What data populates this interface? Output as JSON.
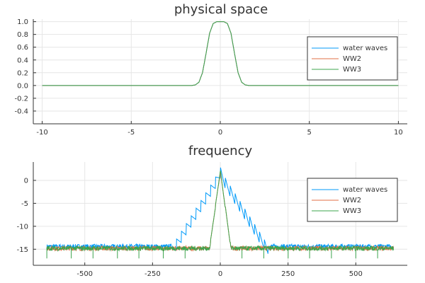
{
  "chart_data": [
    {
      "type": "line",
      "title": "physical space",
      "xlabel": "",
      "ylabel": "",
      "xlim": [
        -10.5,
        10.5
      ],
      "ylim": [
        -0.6,
        1.04
      ],
      "xticks": [
        -10,
        -5,
        0,
        5,
        10
      ],
      "xtick_labels": [
        "-10",
        "-5",
        "0",
        "5",
        "10"
      ],
      "yticks": [
        -0.4,
        -0.2,
        0.0,
        0.2,
        0.4,
        0.6,
        0.8,
        1.0
      ],
      "ytick_labels": [
        "-0.4",
        "-0.2",
        "0.0",
        "0.2",
        "0.4",
        "0.6",
        "0.8",
        "1.0"
      ],
      "grid": true,
      "legend_position": "right",
      "x": [
        -10,
        -2,
        -1.6,
        -1.4,
        -1.2,
        -1.0,
        -0.8,
        -0.6,
        -0.4,
        -0.2,
        0,
        0.2,
        0.4,
        0.6,
        0.8,
        1.0,
        1.2,
        1.4,
        1.6,
        2,
        10
      ],
      "series": [
        {
          "name": "water waves",
          "color": "#009af9",
          "values": [
            0,
            0,
            0.0,
            0.01,
            0.05,
            0.2,
            0.5,
            0.82,
            0.97,
            1.0,
            1.0,
            1.0,
            0.97,
            0.82,
            0.5,
            0.2,
            0.05,
            0.01,
            0.0,
            0,
            0
          ]
        },
        {
          "name": "WW2",
          "color": "#e26f46",
          "values": [
            0,
            0,
            0.0,
            0.01,
            0.05,
            0.2,
            0.5,
            0.82,
            0.97,
            1.0,
            1.0,
            1.0,
            0.97,
            0.82,
            0.5,
            0.2,
            0.05,
            0.01,
            0.0,
            0,
            0
          ]
        },
        {
          "name": "WW3",
          "color": "#3da44d",
          "values": [
            0,
            0,
            0.0,
            0.01,
            0.05,
            0.2,
            0.5,
            0.82,
            0.97,
            1.0,
            1.0,
            1.0,
            0.97,
            0.82,
            0.5,
            0.2,
            0.05,
            0.01,
            0.0,
            0,
            0
          ]
        }
      ]
    },
    {
      "type": "line",
      "title": "frequency",
      "xlabel": "",
      "ylabel": "",
      "xlim": [
        -690,
        690
      ],
      "ylim": [
        -18.5,
        4
      ],
      "xticks": [
        -500,
        -250,
        0,
        250,
        500
      ],
      "xtick_labels": [
        "-500",
        "-250",
        "0",
        "250",
        "500"
      ],
      "yticks": [
        -15,
        -10,
        -5,
        0
      ],
      "ytick_labels": [
        "-15",
        "-10",
        "-5",
        "0"
      ],
      "grid": true,
      "legend_position": "right",
      "series": [
        {
          "name": "water waves",
          "color": "#009af9",
          "envelope": {
            "x": [
              -640,
              -180,
              -20,
              0,
              20,
              180,
              640
            ],
            "y": [
              -14.4,
              -14.4,
              0.5,
              3.0,
              0.5,
              -14.4,
              -14.4
            ]
          },
          "noise_level": -14.4,
          "ripple": 2.5,
          "spike_min": -17.5
        },
        {
          "name": "WW2",
          "color": "#e26f46",
          "envelope": {
            "x": [
              -640,
              -40,
              -10,
              0,
              10,
              40,
              640
            ],
            "y": [
              -14.8,
              -14.8,
              -2.0,
              2.0,
              -2.0,
              -14.8,
              -14.8
            ]
          },
          "noise_level": -14.8,
          "ripple": 0.5,
          "spike_min": -17.0
        },
        {
          "name": "WW3",
          "color": "#3da44d",
          "envelope": {
            "x": [
              -640,
              -40,
              -10,
              0,
              10,
              40,
              640
            ],
            "y": [
              -14.8,
              -14.8,
              -2.0,
              2.5,
              -2.0,
              -14.8,
              -14.8
            ]
          },
          "noise_level": -14.8,
          "ripple": 0.5,
          "spike_min": -17.0,
          "spikes_x": [
            -640,
            -550,
            -470,
            -380,
            -300,
            -210,
            -130,
            80,
            160,
            250,
            330,
            410,
            500,
            580
          ]
        }
      ]
    }
  ]
}
